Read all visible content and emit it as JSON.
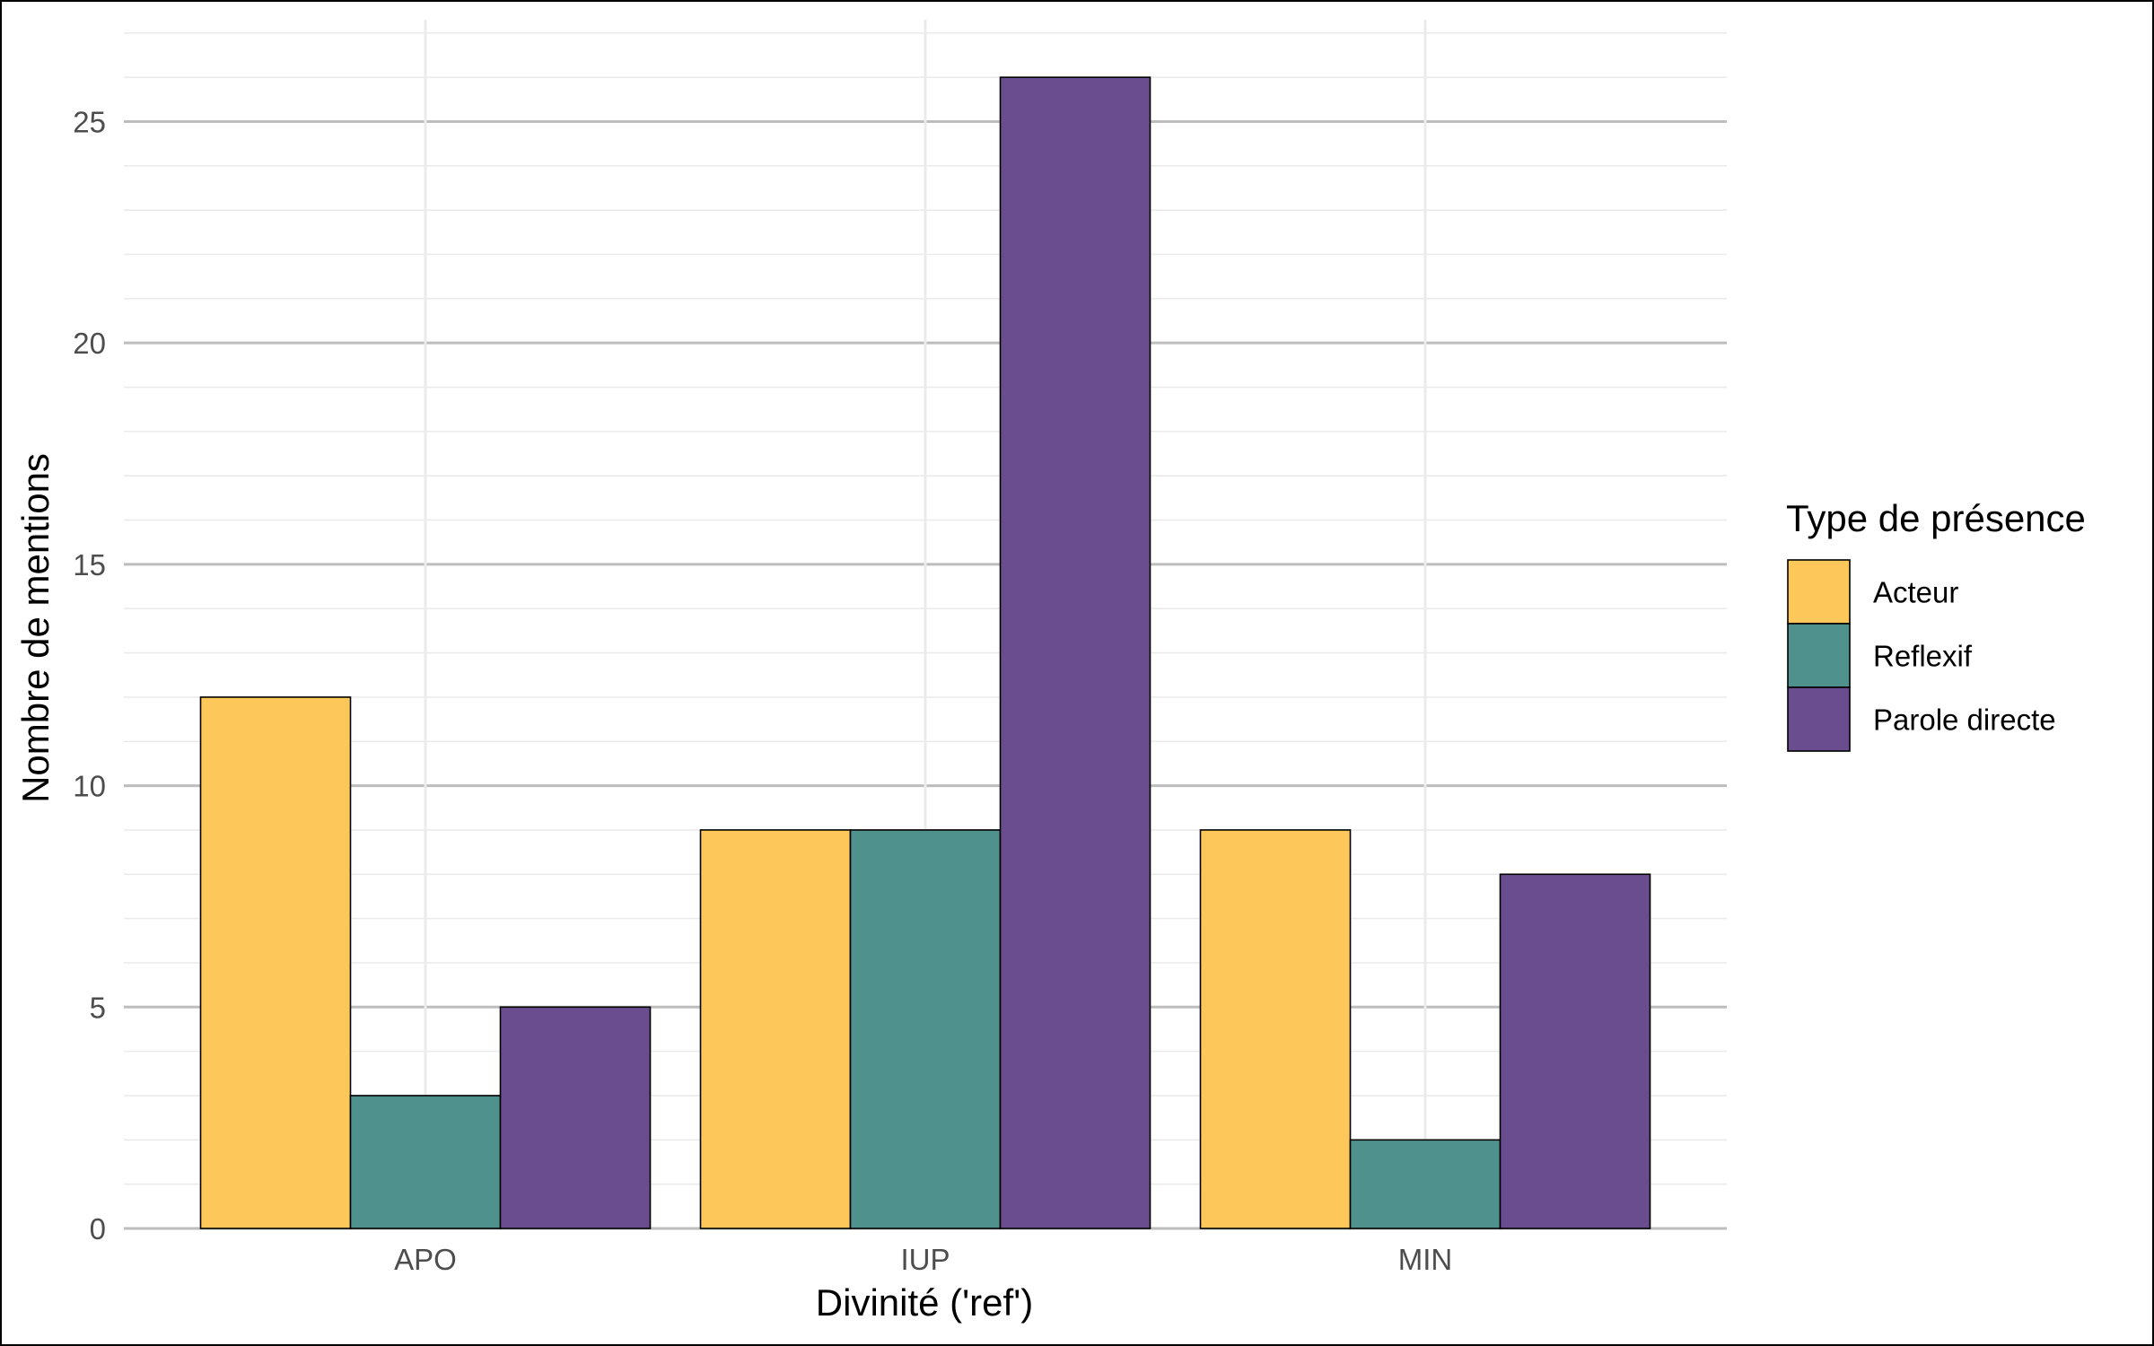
{
  "chart_data": {
    "type": "bar",
    "categories": [
      "APO",
      "IUP",
      "MIN"
    ],
    "series": [
      {
        "name": "Acteur",
        "values": [
          12,
          9,
          9
        ],
        "color": "#FDC75A"
      },
      {
        "name": "Reflexif",
        "values": [
          3,
          9,
          2
        ],
        "color": "#4F918D"
      },
      {
        "name": "Parole directe",
        "values": [
          5,
          26,
          8
        ],
        "color": "#6A4D8F"
      }
    ],
    "title": "",
    "xlabel": "Divinité ('ref')",
    "ylabel": "Nombre de mentions",
    "ylim": [
      0,
      27.3
    ],
    "yticks": [
      0,
      5,
      10,
      15,
      20,
      25
    ],
    "ytick_labels": [
      "0",
      "5",
      "10",
      "15",
      "20",
      "25"
    ],
    "grid": true,
    "legend": {
      "title": "Type de présence",
      "position": "right"
    }
  }
}
